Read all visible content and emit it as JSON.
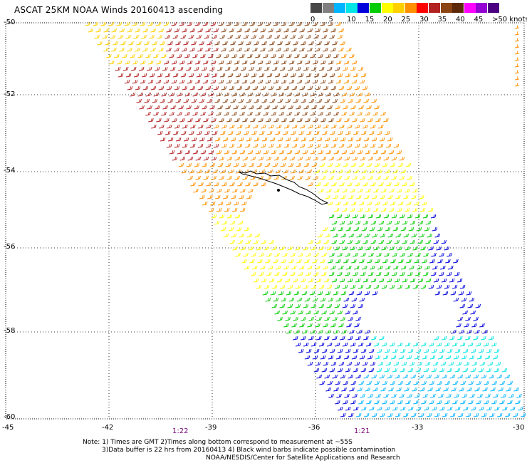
{
  "header": {
    "title": "ASCAT 25KM NOAA Winds 20160413 ascending"
  },
  "colorbar": {
    "colors": [
      "#484848",
      "#7f7f7f",
      "#00b4ff",
      "#00e5e5",
      "#0000dd",
      "#00cc00",
      "#ffff00",
      "#ffd000",
      "#ff9000",
      "#ff0000",
      "#b22222",
      "#8b4513",
      "#5c2a0a",
      "#ff00ff",
      "#9400d3",
      "#4b0082"
    ],
    "labels": [
      "0",
      "5",
      "10",
      "15",
      "20",
      "25",
      "30",
      "35",
      "40",
      "45",
      ">50 knots"
    ]
  },
  "axes": {
    "lat_labels": [
      "-50",
      "-52",
      "-54",
      "-56",
      "-58",
      "-60"
    ],
    "lon_labels": [
      "-45",
      "-42",
      "-39",
      "-36",
      "-33",
      "-30"
    ],
    "times": [
      "1:22",
      "1:21"
    ]
  },
  "notes": {
    "line1": "Note: 1) Times are GMT 2)Times along bottom correspond to measurement at ~55S",
    "line2": "3)Data buffer is 22 hrs from 20160413 4) Black wind barbs indicate possible contamination",
    "line3": "NOAA/NESDIS/Center for Satellite Applications and Research"
  }
}
